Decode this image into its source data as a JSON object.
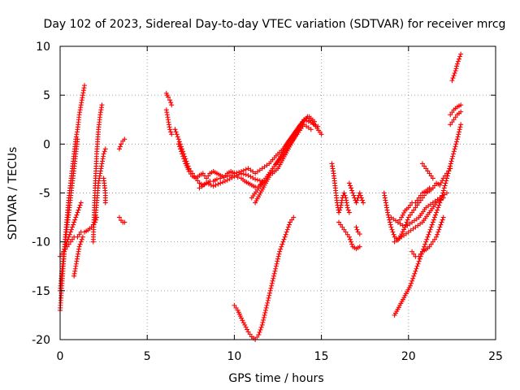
{
  "chart_data": {
    "type": "scatter",
    "title": "Day 102 of 2023, Sidereal Day-to-day VTEC variation (SDTVAR) for receiver mrcg",
    "xlabel": "GPS time / hours",
    "ylabel": "SDTVAR / TECUs",
    "xlim": [
      0,
      25
    ],
    "ylim": [
      -20,
      10
    ],
    "xticks": [
      "0",
      "5",
      "10",
      "15",
      "20",
      "25"
    ],
    "yticks": [
      "-20",
      "-15",
      "-10",
      "-5",
      "0",
      "5",
      "10"
    ],
    "grid": true,
    "marker": "plus",
    "color": "#ff0000",
    "series": [
      {
        "name": "arc-01",
        "x": [
          0.0,
          0.1,
          0.2,
          0.3,
          0.4,
          0.5,
          0.6,
          0.7,
          0.8,
          0.9,
          1.0,
          1.1,
          1.2,
          1.3,
          1.4
        ],
        "y": [
          -17.0,
          -14.5,
          -12.0,
          -9.5,
          -7.5,
          -5.5,
          -4.0,
          -2.5,
          -1.0,
          0.5,
          1.5,
          3.0,
          4.0,
          5.0,
          6.0
        ]
      },
      {
        "name": "arc-02",
        "x": [
          0.0,
          0.1,
          0.2,
          0.3,
          0.4,
          0.5,
          0.6,
          0.7,
          0.8,
          0.9,
          1.0
        ],
        "y": [
          -15.0,
          -13.0,
          -11.5,
          -10.0,
          -8.5,
          -7.0,
          -5.5,
          -4.0,
          -2.5,
          -1.0,
          0.5
        ]
      },
      {
        "name": "arc-03",
        "x": [
          0.0,
          0.2,
          0.4,
          0.6,
          0.8,
          1.0,
          1.2,
          1.4,
          1.6,
          1.8,
          2.0,
          2.1
        ],
        "y": [
          -11.5,
          -11.0,
          -10.5,
          -10.0,
          -9.5,
          -9.5,
          -9.0,
          -9.0,
          -8.8,
          -8.5,
          -8.0,
          -7.5
        ]
      },
      {
        "name": "arc-04",
        "x": [
          0.2,
          0.4,
          0.6,
          0.8,
          1.0,
          1.2
        ],
        "y": [
          -11.0,
          -10.0,
          -9.0,
          -8.0,
          -7.0,
          -6.0
        ]
      },
      {
        "name": "arc-05",
        "x": [
          0.8,
          0.9,
          1.0,
          1.1,
          1.2,
          1.3
        ],
        "y": [
          -13.5,
          -12.5,
          -11.5,
          -10.5,
          -10.0,
          -9.5
        ]
      },
      {
        "name": "arc-06",
        "x": [
          1.9,
          2.0,
          2.1,
          2.2,
          2.3,
          2.4
        ],
        "y": [
          -10.0,
          -5.0,
          -1.0,
          1.5,
          3.0,
          4.0
        ]
      },
      {
        "name": "arc-07",
        "x": [
          2.0,
          2.1,
          2.2,
          2.3,
          2.4,
          2.5,
          2.6
        ],
        "y": [
          -8.0,
          -6.0,
          -4.0,
          -3.0,
          -2.0,
          -1.0,
          -0.5
        ]
      },
      {
        "name": "arc-08",
        "x": [
          2.5,
          2.6,
          2.6
        ],
        "y": [
          -3.5,
          -5.0,
          -6.0
        ]
      },
      {
        "name": "arc-09",
        "x": [
          3.4,
          3.5,
          3.6,
          3.7
        ],
        "y": [
          -0.5,
          0.0,
          0.3,
          0.5
        ]
      },
      {
        "name": "arc-10",
        "x": [
          3.4,
          3.5,
          3.6,
          3.7
        ],
        "y": [
          -7.5,
          -7.8,
          -8.0,
          -8.0
        ]
      },
      {
        "name": "arc-11",
        "x": [
          6.1,
          6.2,
          6.3,
          6.4
        ],
        "y": [
          5.2,
          4.8,
          4.5,
          4.0
        ]
      },
      {
        "name": "arc-12",
        "x": [
          6.1,
          6.2,
          6.3,
          6.4
        ],
        "y": [
          3.5,
          2.5,
          1.5,
          1.0
        ]
      },
      {
        "name": "arc-13",
        "x": [
          6.6,
          6.8,
          7.0,
          7.2,
          7.4,
          7.6,
          7.8,
          8.0,
          8.2,
          8.4,
          8.6,
          8.8,
          9.0,
          9.2,
          9.4,
          9.6,
          9.8,
          10.0,
          10.2,
          10.4,
          10.6,
          10.8,
          11.0,
          11.2,
          11.4,
          11.6
        ],
        "y": [
          1.5,
          0.5,
          -0.5,
          -1.5,
          -2.5,
          -3.0,
          -3.5,
          -4.0,
          -4.2,
          -4.0,
          -3.8,
          -3.8,
          -3.6,
          -3.5,
          -3.4,
          -3.3,
          -3.2,
          -3.3,
          -3.4,
          -3.5,
          -3.8,
          -4.0,
          -4.2,
          -4.4,
          -4.3,
          -4.0
        ]
      },
      {
        "name": "arc-14",
        "x": [
          6.8,
          7.0,
          7.2,
          7.4,
          7.6,
          7.8,
          8.0,
          8.2,
          8.4,
          8.6,
          8.8,
          9.0,
          9.2,
          9.4,
          9.6,
          9.8,
          10.0
        ],
        "y": [
          0.0,
          -1.0,
          -2.0,
          -2.8,
          -3.3,
          -3.5,
          -3.2,
          -3.0,
          -3.5,
          -3.0,
          -2.8,
          -3.0,
          -3.2,
          -3.4,
          -3.0,
          -2.8,
          -3.0
        ]
      },
      {
        "name": "arc-15",
        "x": [
          8.0,
          8.4,
          8.8,
          9.2,
          9.6,
          10.0,
          10.4,
          10.8,
          11.2,
          11.6
        ],
        "y": [
          -4.5,
          -4.0,
          -4.3,
          -4.0,
          -3.7,
          -3.3,
          -3.0,
          -3.2,
          -3.6,
          -3.8
        ]
      },
      {
        "name": "arc-16",
        "x": [
          10.0,
          10.4,
          10.8,
          11.2,
          11.6,
          12.0,
          12.4,
          12.8,
          13.2,
          13.6,
          14.0,
          14.4,
          14.8
        ],
        "y": [
          -3.0,
          -2.8,
          -2.5,
          -3.0,
          -2.5,
          -2.0,
          -1.2,
          -0.5,
          0.5,
          1.5,
          2.5,
          2.2,
          1.8
        ]
      },
      {
        "name": "arc-17",
        "x": [
          11.0,
          11.4,
          11.8,
          12.2,
          12.6,
          13.0,
          13.4,
          13.8,
          14.2,
          14.6,
          15.0
        ],
        "y": [
          -5.5,
          -4.5,
          -3.5,
          -2.5,
          -1.5,
          0.0,
          1.0,
          2.0,
          2.8,
          2.0,
          1.0
        ]
      },
      {
        "name": "arc-18",
        "x": [
          11.2,
          11.5,
          11.8,
          12.1
        ],
        "y": [
          -6.0,
          -5.0,
          -4.0,
          -3.0
        ]
      },
      {
        "name": "arc-19",
        "x": [
          12.2,
          12.5,
          12.8,
          13.1,
          13.4,
          13.7,
          14.0,
          14.3,
          14.6
        ],
        "y": [
          -3.0,
          -2.5,
          -1.5,
          -0.5,
          0.5,
          1.5,
          2.5,
          2.8,
          2.3
        ]
      },
      {
        "name": "arc-20",
        "x": [
          12.4,
          12.8,
          13.2,
          13.6,
          14.0,
          14.4
        ],
        "y": [
          -2.0,
          -1.0,
          0.0,
          1.0,
          2.0,
          1.5
        ]
      },
      {
        "name": "arc-21",
        "x": [
          10.0,
          10.2,
          10.4,
          10.6,
          10.8,
          11.0,
          11.2,
          11.4,
          11.6,
          11.8,
          12.0,
          12.2,
          12.4,
          12.6,
          12.8,
          13.0,
          13.2,
          13.4
        ],
        "y": [
          -16.5,
          -17.0,
          -17.8,
          -18.5,
          -19.2,
          -19.7,
          -20.0,
          -19.5,
          -18.5,
          -17.0,
          -15.5,
          -14.0,
          -12.5,
          -11.0,
          -10.0,
          -9.0,
          -8.0,
          -7.5
        ]
      },
      {
        "name": "arc-22",
        "x": [
          15.6,
          15.7,
          15.8,
          15.9,
          16.0,
          16.1,
          16.2,
          16.3,
          16.4,
          16.5,
          16.6
        ],
        "y": [
          -2.0,
          -3.0,
          -4.5,
          -6.0,
          -7.0,
          -6.5,
          -5.5,
          -5.0,
          -5.5,
          -6.5,
          -7.0
        ]
      },
      {
        "name": "arc-23",
        "x": [
          16.0,
          16.2,
          16.4,
          16.6,
          16.8,
          17.0,
          17.2
        ],
        "y": [
          -8.0,
          -8.5,
          -9.0,
          -9.5,
          -10.5,
          -10.7,
          -10.5
        ]
      },
      {
        "name": "arc-24",
        "x": [
          16.6,
          16.8,
          17.0,
          17.2,
          17.4
        ],
        "y": [
          -4.0,
          -5.0,
          -6.0,
          -5.0,
          -6.0
        ]
      },
      {
        "name": "arc-25",
        "x": [
          17.0,
          17.1,
          17.2
        ],
        "y": [
          -8.5,
          -9.0,
          -9.2
        ]
      },
      {
        "name": "arc-26",
        "x": [
          18.6,
          18.8,
          19.0,
          19.2,
          19.4,
          19.6,
          19.8,
          20.0,
          20.2,
          20.4,
          20.6,
          20.8,
          21.0,
          21.2,
          21.4,
          21.6,
          21.8,
          22.0,
          22.2,
          22.4
        ],
        "y": [
          -5.0,
          -7.0,
          -8.5,
          -9.5,
          -9.8,
          -9.2,
          -8.5,
          -7.5,
          -7.0,
          -6.5,
          -6.0,
          -5.5,
          -5.0,
          -4.8,
          -4.5,
          -4.0,
          -4.2,
          -3.5,
          -3.0,
          -2.5
        ]
      },
      {
        "name": "arc-27",
        "x": [
          19.0,
          19.4,
          19.8,
          20.2,
          20.6,
          21.0,
          21.4,
          21.8,
          22.2
        ],
        "y": [
          -7.5,
          -8.0,
          -8.5,
          -8.0,
          -7.5,
          -6.5,
          -6.0,
          -5.5,
          -5.0
        ]
      },
      {
        "name": "arc-28",
        "x": [
          19.2,
          19.6,
          20.0,
          20.4,
          20.8,
          21.2,
          21.6,
          22.0
        ],
        "y": [
          -10.0,
          -9.5,
          -9.0,
          -8.5,
          -8.0,
          -7.0,
          -6.0,
          -5.5
        ]
      },
      {
        "name": "arc-29",
        "x": [
          19.4,
          19.6,
          19.8,
          20.0,
          20.2
        ],
        "y": [
          -8.0,
          -7.5,
          -6.8,
          -6.5,
          -6.0
        ]
      },
      {
        "name": "arc-30",
        "x": [
          19.2,
          19.5,
          19.8,
          20.1,
          20.4,
          20.7,
          21.0,
          21.3,
          21.6,
          21.9,
          22.2,
          22.5,
          22.8,
          23.0
        ],
        "y": [
          -17.5,
          -16.5,
          -15.5,
          -14.5,
          -13.0,
          -11.5,
          -10.0,
          -8.5,
          -7.0,
          -5.5,
          -3.5,
          -1.5,
          0.5,
          2.0
        ]
      },
      {
        "name": "arc-31",
        "x": [
          20.2,
          20.4,
          20.6,
          20.8,
          21.0,
          21.2,
          21.4,
          21.6,
          21.8,
          22.0
        ],
        "y": [
          -11.0,
          -11.5,
          -11.5,
          -11.0,
          -10.8,
          -10.5,
          -10.0,
          -9.5,
          -8.5,
          -7.5
        ]
      },
      {
        "name": "arc-32",
        "x": [
          20.4,
          20.6,
          20.8,
          21.0,
          21.2
        ],
        "y": [
          -6.0,
          -5.5,
          -5.0,
          -4.8,
          -4.5
        ]
      },
      {
        "name": "arc-33",
        "x": [
          20.8,
          21.0,
          21.2,
          21.4
        ],
        "y": [
          -2.0,
          -2.5,
          -3.0,
          -3.5
        ]
      },
      {
        "name": "arc-34",
        "x": [
          22.4,
          22.6,
          22.8,
          23.0
        ],
        "y": [
          3.0,
          3.5,
          3.8,
          4.0
        ]
      },
      {
        "name": "arc-35",
        "x": [
          22.4,
          22.6,
          22.8,
          23.0
        ],
        "y": [
          2.0,
          2.5,
          3.0,
          3.3
        ]
      },
      {
        "name": "arc-36",
        "x": [
          22.5,
          22.6,
          22.7,
          22.8,
          22.9,
          23.0
        ],
        "y": [
          6.5,
          7.0,
          7.5,
          8.2,
          8.7,
          9.2
        ]
      }
    ]
  }
}
